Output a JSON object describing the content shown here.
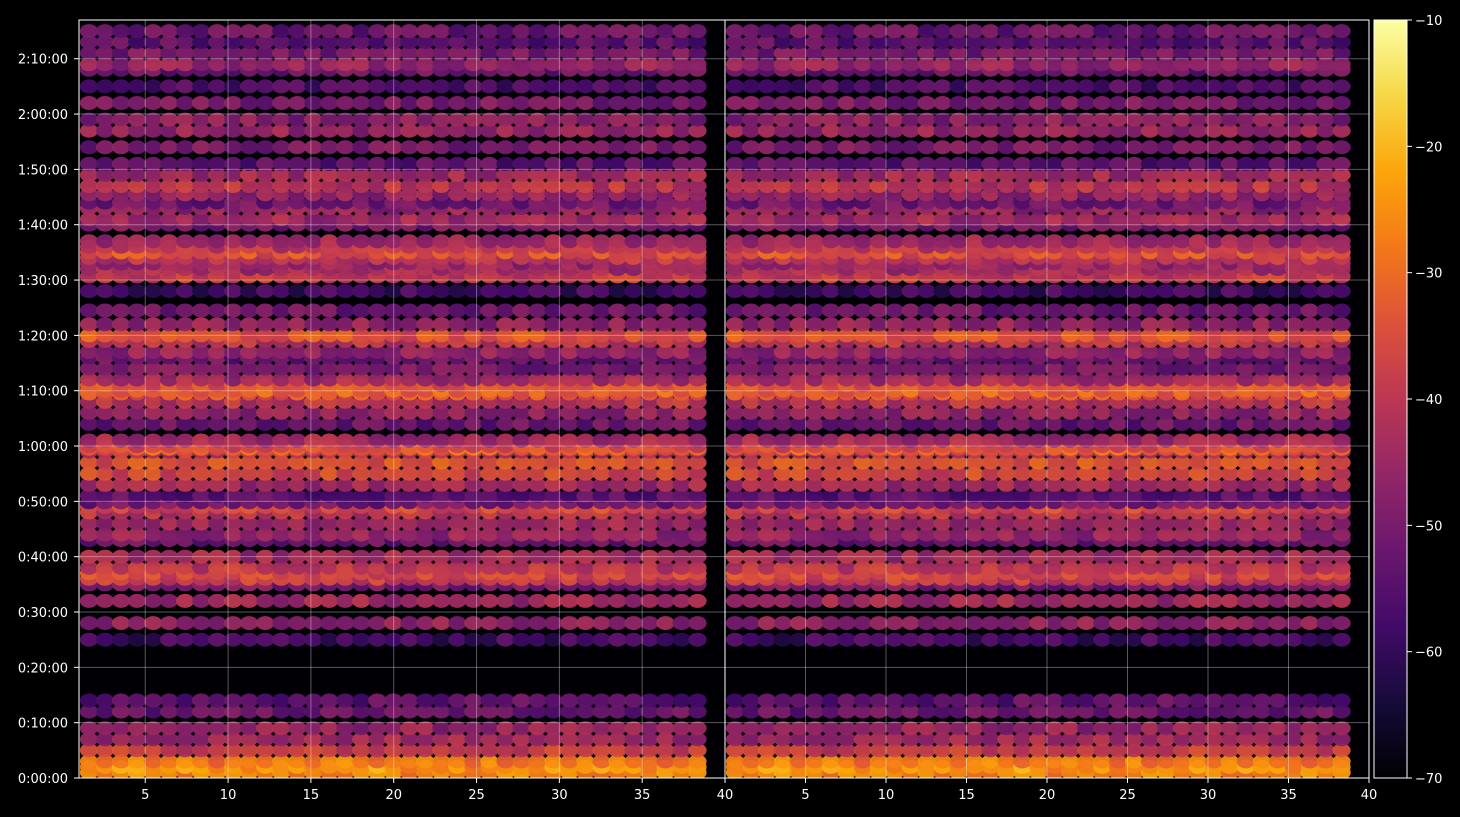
{
  "chart_data": {
    "type": "heatmap",
    "title": "",
    "xlabel": "",
    "ylabel": "",
    "panels": [
      {
        "name": "left",
        "xlim": [
          1,
          40
        ],
        "x_ticks": [
          5,
          10,
          15,
          20,
          25,
          30,
          35,
          40
        ]
      },
      {
        "name": "right",
        "xlim": [
          0,
          40
        ],
        "x_ticks": [
          5,
          10,
          15,
          20,
          25,
          30,
          35,
          40
        ]
      }
    ],
    "x_tick_labels": [
      "5",
      "10",
      "15",
      "20",
      "25",
      "30",
      "35",
      "40"
    ],
    "y_axis": {
      "unit": "elapsed time",
      "range_seconds": [
        0,
        8220
      ],
      "ticks_seconds": [
        0,
        600,
        1200,
        1800,
        2400,
        3000,
        3600,
        4200,
        4800,
        5400,
        6000,
        6600,
        7200,
        7800
      ],
      "tick_labels": [
        "0:00:00",
        "0:10:00",
        "0:20:00",
        "0:30:00",
        "0:40:00",
        "0:50:00",
        "1:00:00",
        "1:10:00",
        "1:20:00",
        "1:30:00",
        "1:40:00",
        "1:50:00",
        "2:00:00",
        "2:10:00"
      ]
    },
    "grid": true,
    "colormap": "inferno",
    "colorbar": {
      "range": [
        -70,
        -10
      ],
      "ticks": [
        -10,
        -20,
        -30,
        -40,
        -50,
        -60,
        -70
      ],
      "tick_labels": [
        "−10",
        "−20",
        "−30",
        "−40",
        "−50",
        "−60",
        "−70"
      ]
    },
    "row_profile_note_free": true,
    "rows": {
      "time_seconds": [
        60,
        120,
        180,
        300,
        420,
        540,
        720,
        840,
        1500,
        1680,
        1920,
        2100,
        2160,
        2220,
        2280,
        2400,
        2580,
        2640,
        2760,
        2880,
        2940,
        2990,
        3060,
        3180,
        3300,
        3420,
        3540,
        3570,
        3600,
        3660,
        3840,
        3960,
        4080,
        4170,
        4200,
        4260,
        4320,
        4440,
        4560,
        4620,
        4740,
        4800,
        4920,
        5070,
        5280,
        5440,
        5520,
        5580,
        5640,
        5700,
        5760,
        5820,
        6000,
        6060,
        6180,
        6240,
        6330,
        6420,
        6540,
        6660,
        6840,
        7020,
        7140,
        7320,
        7500,
        7680,
        7740,
        7860,
        7980,
        8100
      ],
      "mean_level": [
        -26,
        -24,
        -28,
        -38,
        -44,
        -46,
        -52,
        -54,
        -58,
        -46,
        -44,
        -50,
        -38,
        -36,
        -40,
        -44,
        -52,
        -46,
        -44,
        -40,
        -36,
        -52,
        -54,
        -44,
        -36,
        -34,
        -40,
        -32,
        -36,
        -44,
        -52,
        -46,
        -40,
        -34,
        -32,
        -34,
        -44,
        -50,
        -52,
        -46,
        -40,
        -34,
        -46,
        -52,
        -58,
        -38,
        -44,
        -46,
        -40,
        -34,
        -40,
        -44,
        -50,
        -44,
        -46,
        -52,
        -46,
        -40,
        -44,
        -54,
        -50,
        -46,
        -48,
        -50,
        -56,
        -52,
        -46,
        -50,
        -54,
        -52
      ]
    }
  }
}
